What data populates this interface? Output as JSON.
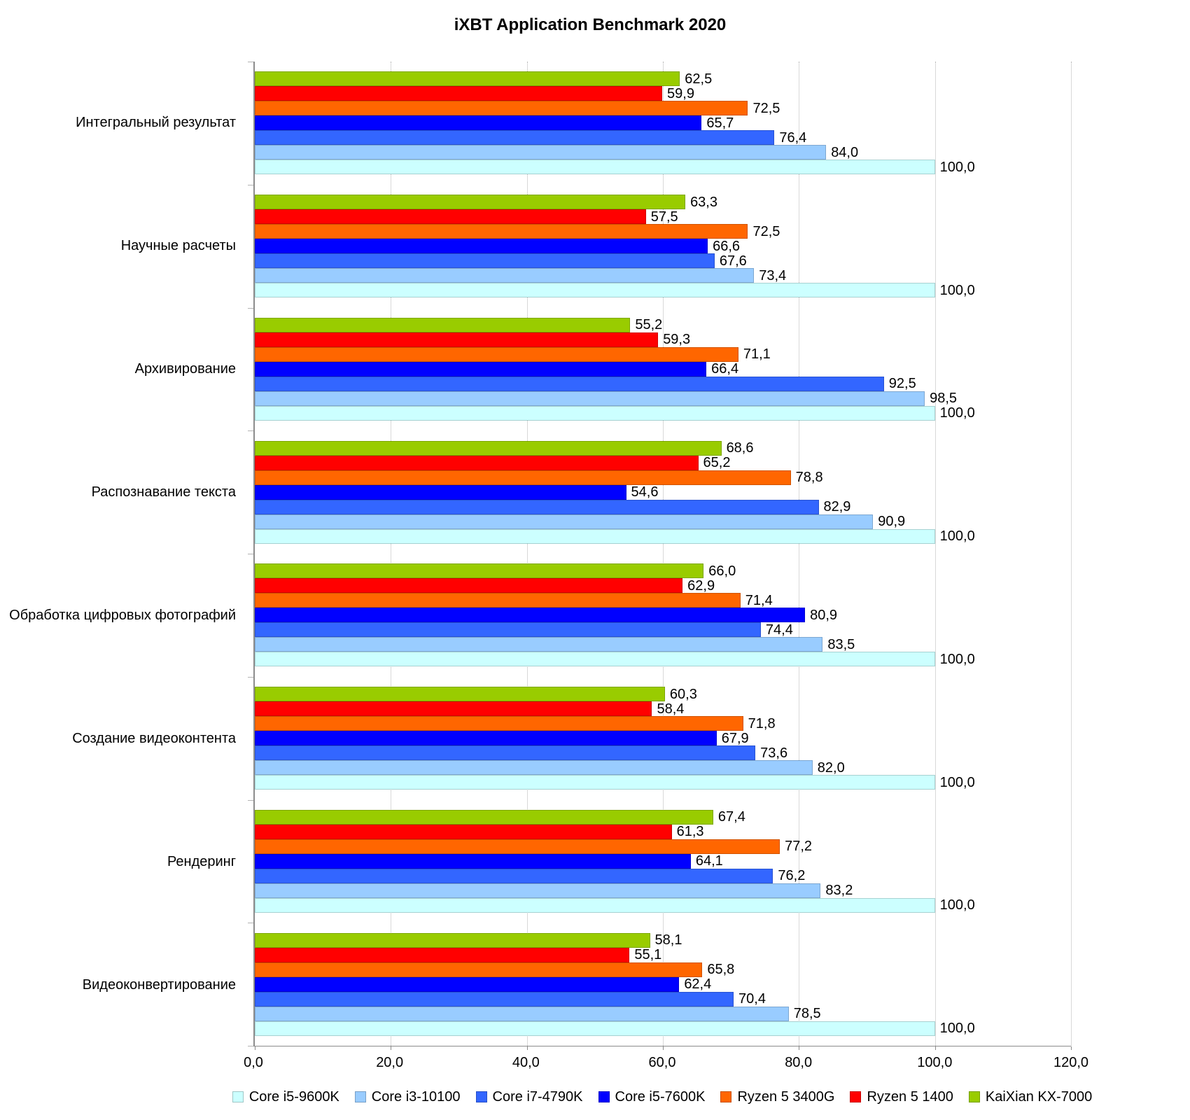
{
  "title": "iXBT Application Benchmark 2020",
  "chart_data": {
    "type": "bar",
    "orientation": "horizontal",
    "title": "iXBT Application Benchmark 2020",
    "decimal_separator": ",",
    "grid": "vertical dotted gridlines every 20 units",
    "legend_position": "bottom",
    "xlim": [
      0,
      120
    ],
    "x_tick_labels": [
      "0,0",
      "20,0",
      "40,0",
      "60,0",
      "80,0",
      "100,0",
      "120,0"
    ],
    "categories": [
      "Интегральный результат",
      "Научные расчеты",
      "Архивирование",
      "Распознавание текста",
      "Обработка цифровых фотографий",
      "Создание видеоконтента",
      "Рендеринг",
      "Видеоконвертирование"
    ],
    "series": [
      {
        "name": "Core i5-9600K",
        "color": "#CCFFFF",
        "values": [
          100.0,
          100.0,
          100.0,
          100.0,
          100.0,
          100.0,
          100.0,
          100.0
        ]
      },
      {
        "name": "Core i3-10100",
        "color": "#99CCFF",
        "values": [
          84.0,
          73.4,
          98.5,
          90.9,
          83.5,
          82.0,
          83.2,
          78.5
        ]
      },
      {
        "name": "Core i7-4790K",
        "color": "#3366FF",
        "values": [
          76.4,
          67.6,
          92.5,
          82.9,
          74.4,
          73.6,
          76.2,
          70.4
        ]
      },
      {
        "name": "Core i5-7600K",
        "color": "#0000FF",
        "values": [
          65.7,
          66.6,
          66.4,
          54.6,
          80.9,
          67.9,
          64.1,
          62.4
        ]
      },
      {
        "name": "Ryzen 5 3400G",
        "color": "#FF6600",
        "values": [
          72.5,
          72.5,
          71.1,
          78.8,
          71.4,
          71.8,
          77.2,
          65.8
        ]
      },
      {
        "name": "Ryzen 5 1400",
        "color": "#FF0000",
        "values": [
          59.9,
          57.5,
          59.3,
          65.2,
          62.9,
          58.4,
          61.3,
          55.1
        ]
      },
      {
        "name": "KaiXian KX-7000",
        "color": "#99CC00",
        "values": [
          62.5,
          63.3,
          55.2,
          68.6,
          66.0,
          60.3,
          67.4,
          58.1
        ]
      }
    ],
    "bar_order_top_to_bottom_within_group": [
      "KaiXian KX-7000",
      "Ryzen 5 1400",
      "Ryzen 5 3400G",
      "Core i5-7600K",
      "Core i7-4790K",
      "Core i3-10100",
      "Core i5-9600K"
    ]
  },
  "legend": {
    "items": [
      {
        "label": "Core i5-9600K"
      },
      {
        "label": "Core i3-10100"
      },
      {
        "label": "Core i7-4790K"
      },
      {
        "label": "Core i5-7600K"
      },
      {
        "label": "Ryzen 5 3400G"
      },
      {
        "label": "Ryzen 5 1400"
      },
      {
        "label": "KaiXian KX-7000"
      }
    ]
  }
}
